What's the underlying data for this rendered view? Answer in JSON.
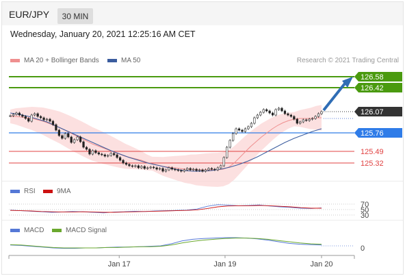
{
  "header": {
    "pair": "EUR/JPY",
    "timeframe": "30 MIN",
    "datetime": "Wednesday, January 20, 2021 12:25:16 AM CET",
    "credit": "Research © 2021 Trading Central"
  },
  "legends": {
    "ma20": "MA 20 + Bollinger Bands",
    "ma50": "MA 50",
    "rsi": "RSI",
    "nine_ma": "9MA",
    "macd": "MACD",
    "macd_signal": "MACD Signal"
  },
  "colors": {
    "green": "#4a9a0f",
    "blue": "#2f7ce8",
    "red": "#e04040",
    "dark": "#333333",
    "bollinger_fill": "#fbd6d6",
    "ma20": "#ef8f8f",
    "ma50": "#3a5c9e",
    "rsi": "#5578d6",
    "nine_ma": "#cc1111",
    "macd": "#5578d6",
    "macd_signal": "#6aa82e"
  },
  "chart_data": [
    {
      "type": "candlestick",
      "title": "EUR/JPY",
      "subtitle": "30 MIN",
      "x_ticks": [
        "Jan 17",
        "Jan 19",
        "Jan 20"
      ],
      "ylim": [
        125.05,
        126.75
      ],
      "current_price": 126.07,
      "levels": [
        {
          "value": 126.58,
          "label": "126.58",
          "kind": "resistance"
        },
        {
          "value": 126.42,
          "label": "126.42",
          "kind": "resistance"
        },
        {
          "value": 125.76,
          "label": "125.76",
          "kind": "pivot"
        },
        {
          "value": 125.49,
          "label": "125.49",
          "kind": "support"
        },
        {
          "value": 125.32,
          "label": "125.32",
          "kind": "support"
        }
      ],
      "close_series": [
        126.01,
        126.03,
        126.05,
        126.02,
        126.0,
        125.97,
        125.93,
        126.02,
        126.04,
        126.0,
        125.98,
        125.95,
        125.96,
        125.93,
        125.88,
        125.8,
        125.72,
        125.68,
        125.75,
        125.7,
        125.62,
        125.66,
        125.7,
        125.63,
        125.55,
        125.52,
        125.45,
        125.5,
        125.47,
        125.45,
        125.44,
        125.42,
        125.43,
        125.46,
        125.44,
        125.4,
        125.36,
        125.32,
        125.3,
        125.28,
        125.27,
        125.28,
        125.25,
        125.27,
        125.24,
        125.25,
        125.26,
        125.25,
        125.23,
        125.24,
        125.2,
        125.22,
        125.25,
        125.23,
        125.22,
        125.21,
        125.2,
        125.22,
        125.24,
        125.22,
        125.23,
        125.21,
        125.22,
        125.2,
        125.22,
        125.24,
        125.23,
        125.22,
        125.25,
        125.28,
        125.4,
        125.55,
        125.65,
        125.75,
        125.82,
        125.8,
        125.78,
        125.82,
        125.85,
        125.9,
        125.98,
        126.02,
        126.06,
        126.1,
        126.08,
        126.05,
        126.02,
        126.1,
        126.12,
        126.08,
        126.04,
        126.02,
        126.0,
        125.96,
        125.9,
        125.92,
        125.95,
        125.94,
        125.96,
        125.97,
        126.0,
        126.04,
        126.07
      ],
      "ma20_series": [
        126.0,
        126.0,
        125.99,
        125.98,
        125.97,
        125.95,
        125.93,
        125.9,
        125.87,
        125.84,
        125.8,
        125.76,
        125.72,
        125.68,
        125.64,
        125.6,
        125.57,
        125.54,
        125.51,
        125.48,
        125.45,
        125.42,
        125.4,
        125.38,
        125.36,
        125.33,
        125.31,
        125.29,
        125.27,
        125.26,
        125.25,
        125.24,
        125.23,
        125.23,
        125.22,
        125.22,
        125.22,
        125.22,
        125.22,
        125.23,
        125.26,
        125.32,
        125.4,
        125.48,
        125.56,
        125.63,
        125.7,
        125.76,
        125.82,
        125.87,
        125.91,
        125.94,
        125.96,
        125.97,
        125.97,
        125.97,
        125.98,
        125.98
      ],
      "ma50_series": [
        126.05,
        126.03,
        126.0,
        125.96,
        125.92,
        125.86,
        125.8,
        125.74,
        125.68,
        125.62,
        125.56,
        125.5,
        125.45,
        125.4,
        125.36,
        125.32,
        125.29,
        125.26,
        125.23,
        125.21,
        125.2,
        125.2,
        125.21,
        125.23,
        125.26,
        125.3,
        125.35,
        125.41,
        125.48,
        125.55,
        125.62,
        125.68,
        125.73,
        125.78,
        125.82
      ],
      "projection": {
        "from": 126.07,
        "to": 126.58
      }
    },
    {
      "type": "line",
      "title": "RSI",
      "y_ticks": [
        70,
        50,
        30
      ],
      "series": [
        {
          "name": "RSI",
          "values": [
            48,
            46,
            44,
            42,
            40,
            41,
            43,
            42,
            40,
            38,
            41,
            42,
            44,
            43,
            45,
            46,
            47,
            48,
            52,
            62,
            68,
            66,
            64,
            65,
            67,
            63,
            60,
            58,
            55,
            54,
            56
          ]
        },
        {
          "name": "9MA",
          "values": [
            47,
            46,
            45,
            43,
            42,
            41,
            41,
            42,
            41,
            40,
            40,
            41,
            42,
            43,
            44,
            45,
            46,
            47,
            49,
            54,
            60,
            63,
            64,
            64,
            65,
            64,
            62,
            60,
            57,
            55,
            55
          ]
        }
      ]
    },
    {
      "type": "line",
      "title": "MACD",
      "y_ticks": [
        0
      ],
      "series": [
        {
          "name": "MACD",
          "values": [
            0.02,
            0.01,
            -0.01,
            -0.03,
            -0.05,
            -0.06,
            -0.06,
            -0.05,
            -0.05,
            -0.04,
            -0.03,
            -0.03,
            -0.02,
            -0.01,
            0.0,
            0.05,
            0.12,
            0.16,
            0.18,
            0.19,
            0.2,
            0.2,
            0.19,
            0.17,
            0.14,
            0.1,
            0.06,
            0.04,
            0.03,
            0.02
          ]
        },
        {
          "name": "MACD Signal",
          "values": [
            0.03,
            0.02,
            0.0,
            -0.02,
            -0.04,
            -0.05,
            -0.05,
            -0.05,
            -0.05,
            -0.04,
            -0.04,
            -0.03,
            -0.02,
            -0.02,
            -0.01,
            0.02,
            0.07,
            0.11,
            0.14,
            0.16,
            0.18,
            0.19,
            0.19,
            0.18,
            0.16,
            0.13,
            0.1,
            0.07,
            0.05,
            0.04
          ]
        }
      ]
    }
  ]
}
